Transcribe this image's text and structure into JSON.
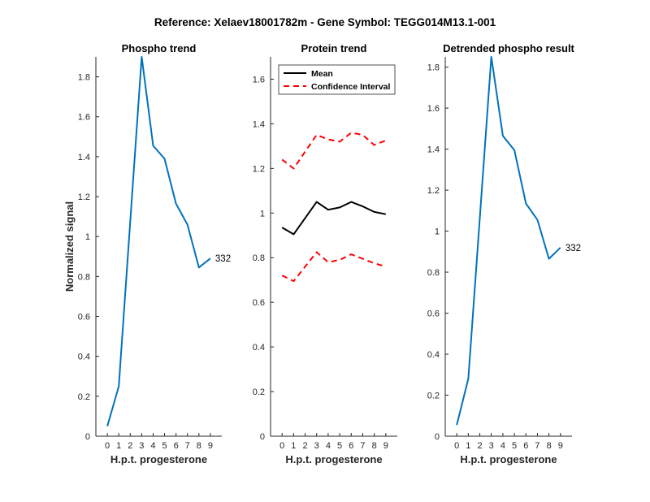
{
  "figure_title": "Reference:  Xelaev18001782m - Gene Symbol:  TEGG014M13.1-001",
  "colors": {
    "series_line": "#0072BD",
    "mean_line": "#000000",
    "ci_line": "#FF0000",
    "axis": "#262626"
  },
  "chart_data": [
    {
      "type": "line",
      "title": "Phospho trend",
      "xlabel": "H.p.t. progesterone",
      "ylabel": "Normalized signal",
      "xlim": [
        -1,
        10
      ],
      "ylim": [
        0,
        1.9
      ],
      "xticks": [
        0,
        1,
        2,
        3,
        4,
        5,
        6,
        7,
        8,
        9
      ],
      "yticks": [
        0,
        0.2,
        0.4,
        0.6,
        0.8,
        1,
        1.2,
        1.4,
        1.6,
        1.8
      ],
      "x": [
        0,
        1,
        3,
        4,
        5,
        6,
        7,
        8,
        9
      ],
      "series": [
        {
          "values": [
            0.05,
            0.25,
            1.9,
            1.455,
            1.39,
            1.165,
            1.06,
            0.845,
            0.89
          ],
          "color": "#0072BD",
          "style": "solid"
        }
      ],
      "annotation": "332",
      "legend": null
    },
    {
      "type": "line",
      "title": "Protein trend",
      "xlabel": "H.p.t. progesterone",
      "ylabel": "",
      "xlim": [
        -1,
        10
      ],
      "ylim": [
        0,
        1.7
      ],
      "xticks": [
        0,
        1,
        2,
        3,
        4,
        5,
        6,
        7,
        8,
        9
      ],
      "yticks": [
        0,
        0.2,
        0.4,
        0.6,
        0.8,
        1,
        1.2,
        1.4,
        1.6
      ],
      "x": [
        0,
        1,
        3,
        4,
        5,
        6,
        7,
        8,
        9
      ],
      "series": [
        {
          "name": "Mean",
          "values": [
            0.935,
            0.905,
            1.05,
            1.015,
            1.025,
            1.05,
            1.03,
            1.005,
            0.995
          ],
          "color": "#000000",
          "style": "solid"
        },
        {
          "name": "Confidence Interval",
          "values": [
            1.24,
            1.2,
            1.35,
            1.33,
            1.32,
            1.36,
            1.35,
            1.305,
            1.325
          ],
          "color": "#FF0000",
          "style": "dashed"
        },
        {
          "values": [
            0.72,
            0.695,
            0.825,
            0.78,
            0.79,
            0.815,
            0.795,
            0.775,
            0.76
          ],
          "color": "#FF0000",
          "style": "dashed"
        }
      ],
      "annotation": "",
      "legend": {
        "entries": [
          "Mean",
          "Confidence Interval"
        ],
        "placement": "top-right"
      }
    },
    {
      "type": "line",
      "title": "Detrended phospho result",
      "xlabel": "H.p.t. progesterone",
      "ylabel": "",
      "xlim": [
        -1,
        10
      ],
      "ylim": [
        0,
        1.85
      ],
      "xticks": [
        0,
        1,
        2,
        3,
        4,
        5,
        6,
        7,
        8,
        9
      ],
      "yticks": [
        0,
        0.2,
        0.4,
        0.6,
        0.8,
        1,
        1.2,
        1.4,
        1.6,
        1.8
      ],
      "x": [
        0,
        1,
        3,
        4,
        5,
        6,
        7,
        8,
        9
      ],
      "series": [
        {
          "values": [
            0.055,
            0.28,
            1.85,
            1.465,
            1.395,
            1.135,
            1.055,
            0.865,
            0.92
          ],
          "color": "#0072BD",
          "style": "solid"
        }
      ],
      "annotation": "332",
      "legend": null
    }
  ]
}
